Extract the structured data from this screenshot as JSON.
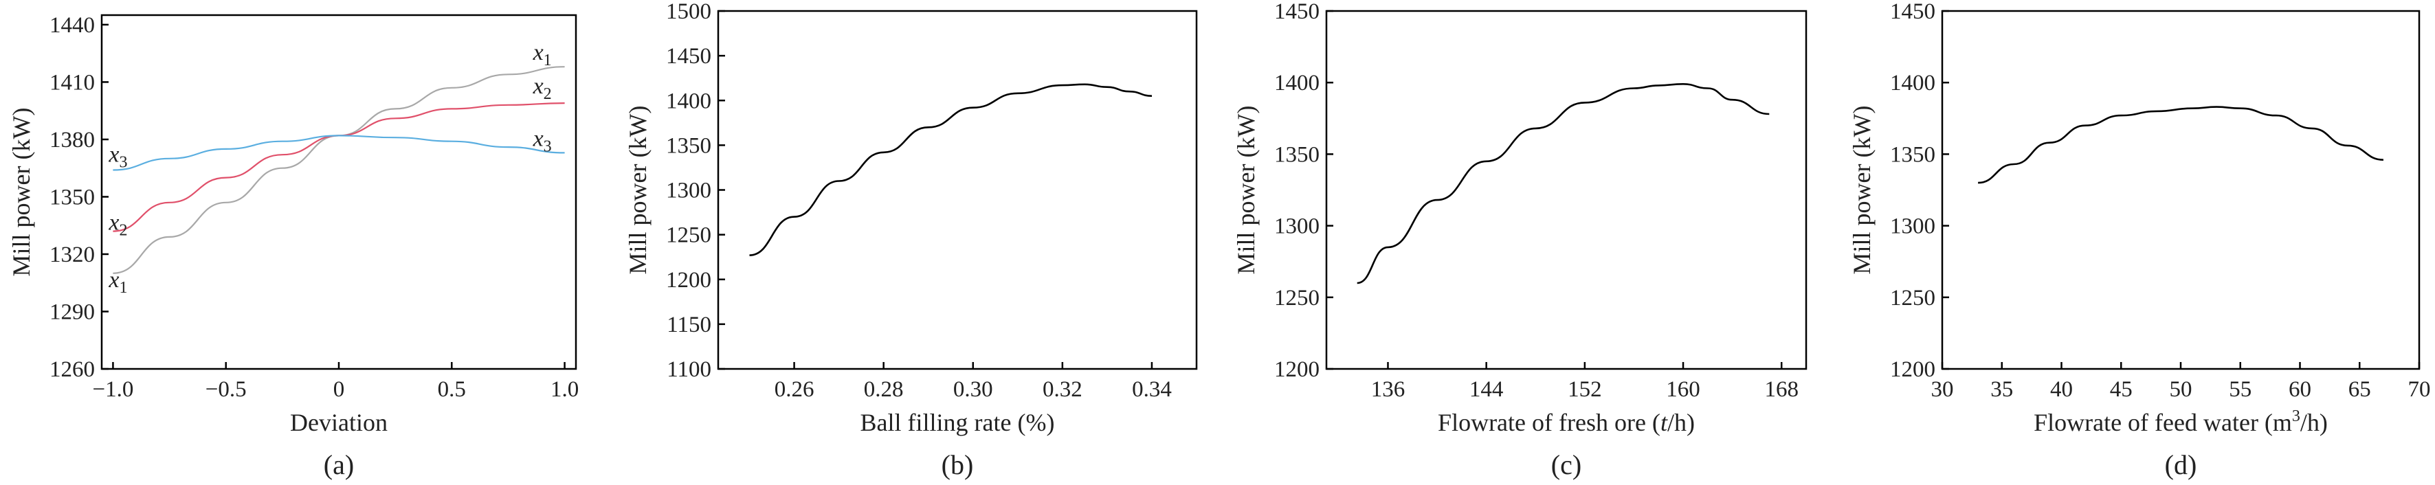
{
  "chart_data": [
    {
      "type": "line",
      "panel_label": "(a)",
      "xlabel": "Deviation",
      "ylabel": "Mill power (kW)",
      "xlim": [
        -1.05,
        1.05
      ],
      "ylim": [
        1260,
        1445
      ],
      "xticks": [
        -1.0,
        -0.5,
        0,
        0.5,
        1.0
      ],
      "xtick_labels": [
        "−1.0",
        "−0.5",
        "0",
        "0.5",
        "1.0"
      ],
      "yticks": [
        1260,
        1290,
        1320,
        1350,
        1380,
        1410,
        1440
      ],
      "ytick_labels": [
        "1260",
        "1290",
        "1320",
        "1350",
        "1380",
        "1410",
        "1440"
      ],
      "series": [
        {
          "name": "x1",
          "label_base": "x",
          "label_sub": "1",
          "color": "#a8a8a8",
          "x": [
            -1.0,
            -0.75,
            -0.5,
            -0.25,
            0,
            0.25,
            0.5,
            0.75,
            1.0
          ],
          "y": [
            1310,
            1329,
            1347,
            1365,
            1382,
            1396,
            1407,
            1414,
            1418
          ]
        },
        {
          "name": "x2",
          "label_base": "x",
          "label_sub": "2",
          "color": "#e0506a",
          "x": [
            -1.0,
            -0.75,
            -0.5,
            -0.25,
            0,
            0.25,
            0.5,
            0.75,
            1.0
          ],
          "y": [
            1332,
            1347,
            1360,
            1372,
            1382,
            1391,
            1396,
            1398,
            1399
          ]
        },
        {
          "name": "x3",
          "label_base": "x",
          "label_sub": "3",
          "color": "#5aaee0",
          "x": [
            -1.0,
            -0.75,
            -0.5,
            -0.25,
            0,
            0.25,
            0.5,
            0.75,
            1.0
          ],
          "y": [
            1364,
            1370,
            1375,
            1379,
            1382,
            1381,
            1379,
            1376,
            1373
          ]
        }
      ]
    },
    {
      "type": "line",
      "panel_label": "(b)",
      "xlabel": "Ball filling rate (%)",
      "ylabel": "Mill power (kW)",
      "xlim": [
        0.243,
        0.35
      ],
      "ylim": [
        1100,
        1500
      ],
      "xticks": [
        0.26,
        0.28,
        0.3,
        0.32,
        0.34
      ],
      "xtick_labels": [
        "0.26",
        "0.28",
        "0.30",
        "0.32",
        "0.34"
      ],
      "yticks": [
        1100,
        1150,
        1200,
        1250,
        1300,
        1350,
        1400,
        1450,
        1500
      ],
      "ytick_labels": [
        "1100",
        "1150",
        "1200",
        "1250",
        "1300",
        "1350",
        "1400",
        "1450",
        "1500"
      ],
      "series": [
        {
          "name": "",
          "color": "#000000",
          "x": [
            0.25,
            0.26,
            0.27,
            0.28,
            0.29,
            0.3,
            0.31,
            0.32,
            0.325,
            0.33,
            0.335,
            0.34
          ],
          "y": [
            1227,
            1270,
            1310,
            1342,
            1370,
            1392,
            1408,
            1417,
            1418,
            1415,
            1410,
            1405
          ]
        }
      ]
    },
    {
      "type": "line",
      "panel_label": "(c)",
      "xlabel_parts": [
        "Flowrate of fresh ore (",
        "t",
        "/h)"
      ],
      "ylabel": "Mill power (kW)",
      "xlim": [
        131,
        170
      ],
      "ylim": [
        1200,
        1450
      ],
      "xticks": [
        136,
        144,
        152,
        160,
        168
      ],
      "xtick_labels": [
        "136",
        "144",
        "152",
        "160",
        "168"
      ],
      "yticks": [
        1200,
        1250,
        1300,
        1350,
        1400,
        1450
      ],
      "ytick_labels": [
        "1200",
        "1250",
        "1300",
        "1350",
        "1400",
        "1450"
      ],
      "series": [
        {
          "name": "",
          "color": "#000000",
          "x": [
            133.5,
            136,
            140,
            144,
            148,
            152,
            156,
            158,
            160,
            162,
            164,
            167
          ],
          "y": [
            1260,
            1285,
            1318,
            1345,
            1368,
            1386,
            1396,
            1398,
            1399,
            1396,
            1388,
            1378
          ]
        }
      ]
    },
    {
      "type": "line",
      "panel_label": "(d)",
      "xlabel_parts": [
        "Flowrate of feed water (m",
        "3",
        "/h)"
      ],
      "ylabel": "Mill power (kW)",
      "xlim": [
        30,
        70
      ],
      "ylim": [
        1200,
        1450
      ],
      "xticks": [
        30,
        35,
        40,
        45,
        50,
        55,
        60,
        65,
        70
      ],
      "xtick_labels": [
        "30",
        "35",
        "40",
        "45",
        "50",
        "55",
        "60",
        "65",
        "70"
      ],
      "yticks": [
        1200,
        1250,
        1300,
        1350,
        1400,
        1450
      ],
      "ytick_labels": [
        "1200",
        "1250",
        "1300",
        "1350",
        "1400",
        "1450"
      ],
      "series": [
        {
          "name": "",
          "color": "#000000",
          "x": [
            33,
            36,
            39,
            42,
            45,
            48,
            51,
            53,
            55,
            58,
            61,
            64,
            67
          ],
          "y": [
            1330,
            1343,
            1358,
            1370,
            1377,
            1380,
            1382,
            1383,
            1382,
            1377,
            1368,
            1356,
            1346
          ]
        }
      ]
    }
  ]
}
